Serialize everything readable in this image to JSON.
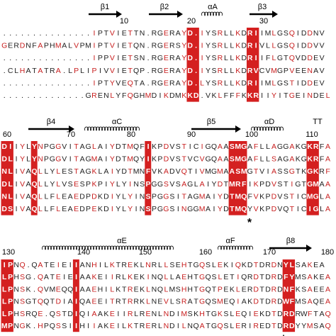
{
  "blocks": [
    {
      "structure": [
        "β1",
        "β2",
        "αA",
        "β3"
      ],
      "numbers": [
        "10",
        "20",
        "30"
      ],
      "rows": [
        "...............IPTVIETTN.RGERAYD.IYSRLLKDRIIMLGSQIDDNV",
        "GERDNFAPHMALVPMIPTVIETQN.RGERSYD.IYSRLLKDRIVLLGSQIDDVV",
        "...............IPPVIETSN.RGERAYD.IYSRLLKDRIIFLGTQVDDEV",
        ".CLHATATRA.LPLIPIVVIETQP.RGERAYD.IYSRLLKDRVCVMGPVEENAV",
        "...............IPTYVEQTA.RGERAYD.LYSRLLKDRIIMLGSTIDDEV",
        "..............GRENLYFQGHMDIKDMKKD.VKLFFFKKRIIYITGEINDEL"
      ]
    },
    {
      "structure": [
        "β4",
        "αC",
        "β5",
        "αD",
        "TT"
      ],
      "numbers": [
        "60",
        "70",
        "80",
        "90",
        "100",
        "110"
      ],
      "marker": "*",
      "rows": [
        "DIIYLYNPGGVITAGLAIYDTMQFIKPDVSTICIGQAASMGAFLLAGGAKGKRFA",
        "DLIYLYNPGGVITAGMAIYDTMQYIKPDVSTVCVGQAASMGAFLLSAGAKGKRFA",
        "NLIVAQLLYLESTAGKLAIYDTMNFVKADVQTIVMGMAASMGTVIASSGTKGKRF",
        "DLIVAQLLYLVSESPKPIYLYINSPGGSVSAGLAIYDTMRFIKPDVSTIGTGMAA",
        "NLIVAQLLFLEAEDPDKDIYLYINSPGGSITAGMAIYDTMQFVKPDVSTICMGLA",
        "DSIVAQLLFLEAEDPEKDIYLYINSPGGSINGGMAIYDTMQYVKPDVQTICIGLA"
      ]
    },
    {
      "structure": [
        "αE",
        "αF",
        "β8"
      ],
      "numbers": [
        "130",
        "140",
        "150",
        "160",
        "170",
        "180"
      ],
      "marker": "*",
      "rows": [
        "IPNQ.QATEIEIIANHILKTREKLNRLLSEHTGQSLEKIQKDTDRDNYLSAKEA",
        "LPHSG.QATEIEIAAKEIIRLKEKINQLLAEHTGQSLETIQRDTDRDFYMSAKEA",
        "LPNSK.QVMEQQIAAEHILKTREKLNQLMSHHTGQTPEKLERDTDRDNFKSAEEA",
        "LPNSGTQQTDIAIQAEEITRTRRKLNEVLSRATGQSMEQIAKDTDRDWFMSAQEA",
        "LPHSRQE.QSTDIQIAAKEIIRLRENLNDIMSKHTGKSLEQIEKDTDRDRWFTAQ",
        "MPNGK.HPQSSIIHIIAKEILKTRERLNDILNQATGQSLERIREDTDRDYYMSAQ"
      ]
    }
  ]
}
